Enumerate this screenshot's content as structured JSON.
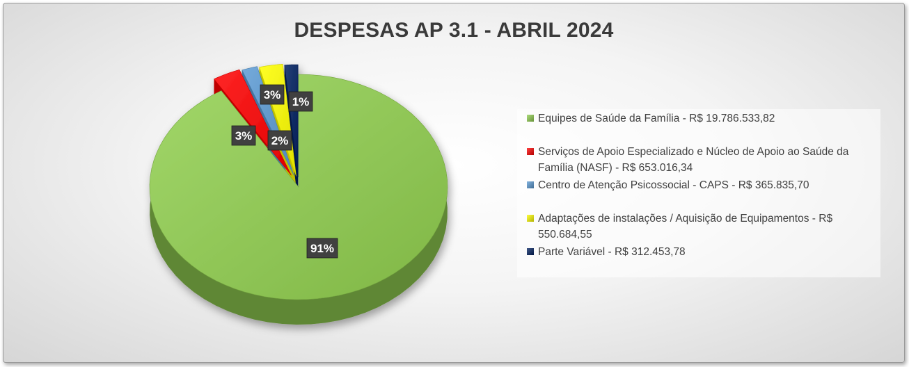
{
  "chart_data": {
    "type": "pie",
    "title": "DESPESAS AP 3.1 - ABRIL 2024",
    "legend_position": "right",
    "slices": [
      {
        "label": " Equipes de Saúde da Família - R$ 19.786.533,82",
        "value": 19786533.82,
        "percent_label": "91%",
        "color": "#92d050"
      },
      {
        "label": "Serviços de Apoio Especializado e Núcleo de Apoio ao Saúde da Família (NASF) - R$ 653.016,34",
        "value": 653016.34,
        "percent_label": "3%",
        "color": "#ff0000"
      },
      {
        "label": "Centro de Atenção Psicossocial - CAPS - R$ 365.835,70",
        "value": 365835.7,
        "percent_label": "2%",
        "color": "#5b9bd5"
      },
      {
        "label": "Adaptações de instalações / Aquisição de Equipamentos - R$ 550.684,55",
        "value": 550684.55,
        "percent_label": "3%",
        "color": "#ffff00"
      },
      {
        "label": "Parte Variável - R$ 312.453,78",
        "value": 312453.78,
        "percent_label": "1%",
        "color": "#002060"
      }
    ]
  }
}
